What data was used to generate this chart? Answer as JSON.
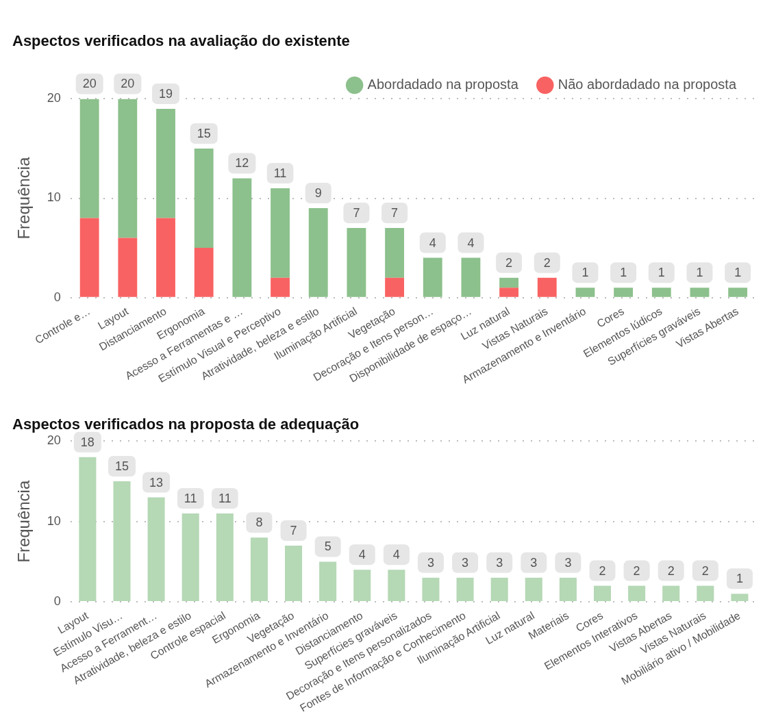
{
  "chart_data": [
    {
      "type": "bar",
      "title": "Aspectos verificados na avaliação do existente",
      "ylabel": "Frequência",
      "categories": [
        "Controle e…",
        "Layout",
        "Distanciamento",
        "Ergonomia",
        "Acesso a Ferramentas e …",
        "Estímulo Visual e Perceptivo",
        "Atratividade, beleza e estilo",
        "Iluminação Artificial",
        "Vegetação",
        "Decoração e Itens person…",
        "Disponibilidade de espaço…",
        "Luz natural",
        "Vistas Naturais",
        "Armazenamento e Inventário",
        "Cores",
        "Elementos lúdicos",
        "Superfícies graváveis",
        "Vistas Abertas"
      ],
      "stacked": true,
      "series": [
        {
          "name": "Não abordadado na proposta",
          "color": "#f96262",
          "values": [
            8,
            6,
            8,
            5,
            0,
            2,
            0,
            0,
            2,
            0,
            0,
            1,
            2,
            0,
            0,
            0,
            0,
            0
          ]
        },
        {
          "name": "Abordadado na proposta",
          "color": "#8cc08c",
          "values": [
            12,
            14,
            11,
            10,
            12,
            9,
            9,
            7,
            5,
            4,
            4,
            1,
            0,
            1,
            1,
            1,
            1,
            1
          ]
        }
      ],
      "totals": [
        "20",
        "20",
        "19",
        "15",
        "12",
        "11",
        "9",
        "7",
        "7",
        "4",
        "4",
        "2",
        "2",
        "1",
        "1",
        "1",
        "1",
        "1"
      ],
      "ylim": [
        0,
        20
      ],
      "yticks": [
        0,
        10,
        20
      ],
      "grid": "y",
      "legend": "top right"
    },
    {
      "type": "bar",
      "title": "Aspectos verificados na proposta de adequação",
      "ylabel": "Frequência",
      "categories": [
        "Layout",
        "Estímulo Visu…",
        "Acesso a Ferrament…",
        "Atratividade, beleza e estilo",
        "Controle espacial",
        "Ergonomia",
        "Vegetação",
        "Armazenamento e Inventário",
        "Distanciamento",
        "Superfícies graváveis",
        "Decoração e Itens personalizados",
        "Fontes de Informação e Conhecimento",
        "Iluminação Artificial",
        "Luz natural",
        "Materiais",
        "Cores",
        "Elementos Interativos",
        "Vistas Abertas",
        "Vistas Naturais",
        "Mobiliário ativo / Mobilidade"
      ],
      "color": "#b5d8b5",
      "values": [
        18,
        15,
        13,
        11,
        11,
        8,
        7,
        5,
        4,
        4,
        3,
        3,
        3,
        3,
        3,
        2,
        2,
        2,
        2,
        1
      ],
      "data_labels": true,
      "ylim": [
        0,
        20
      ],
      "yticks": [
        0,
        10,
        20
      ],
      "grid": "y"
    }
  ]
}
